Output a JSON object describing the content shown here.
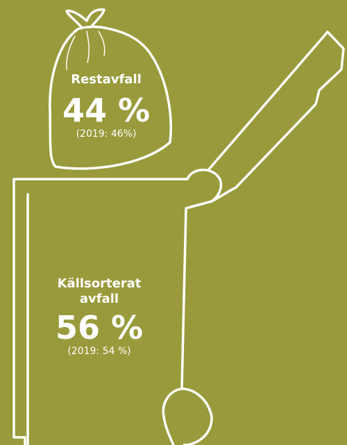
{
  "items": [
    {
      "label": "Restavfall",
      "value": "44 %",
      "previous": "(2019: 46%)"
    },
    {
      "label": [
        "Källsorterat",
        "avfall"
      ],
      "value": "56 %",
      "previous": "(2019: 54 %)"
    }
  ]
}
